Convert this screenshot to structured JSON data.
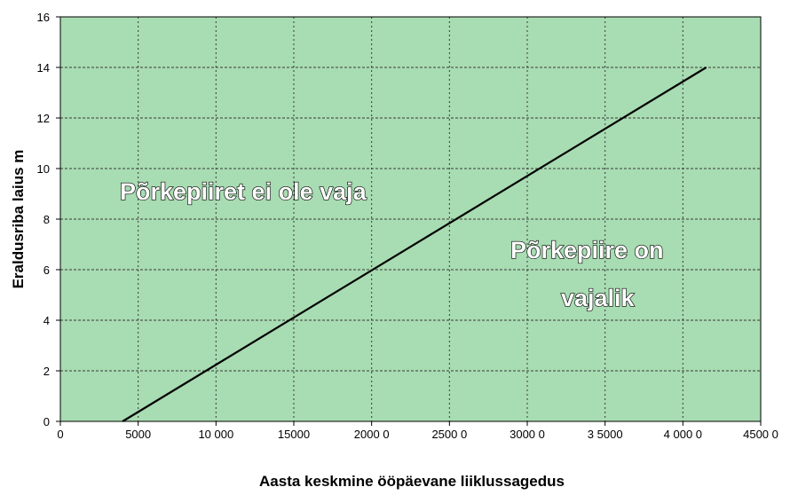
{
  "chart_data": {
    "type": "line",
    "title": "",
    "xlabel": "Aasta keskmine ööpäevane liiklussagedus",
    "ylabel": "Eraldusriba laius m",
    "xlim": [
      0,
      45000
    ],
    "ylim": [
      0,
      16
    ],
    "x_tick_labels": [
      "0",
      "5000",
      "10 000",
      "15000",
      "2000 0",
      "2500 0",
      "3000 0",
      "3 5000",
      "4 000 0",
      "4500 0"
    ],
    "y_tick_labels": [
      "0",
      "2",
      "4",
      "6",
      "8",
      "10",
      "12",
      "14",
      "16"
    ],
    "grid": true,
    "plot_background": "#a8dcb2",
    "line_color": "#000000",
    "series": [
      {
        "x": [
          4000,
          41500
        ],
        "y": [
          0,
          14
        ]
      }
    ],
    "annotations": [
      {
        "text": "Põrkepiiret ei ole vaja"
      },
      {
        "text": "Põrkepiire on"
      },
      {
        "text": "vajalik"
      }
    ]
  }
}
